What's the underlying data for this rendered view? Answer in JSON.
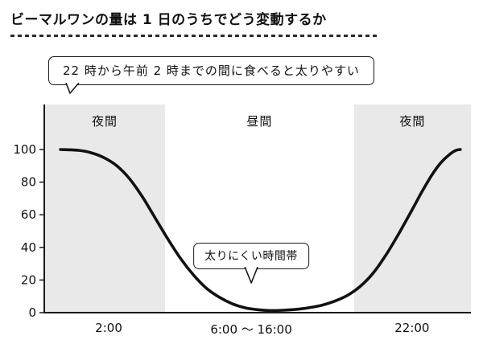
{
  "page": {
    "title": "ビーマルワンの量は 1 日のうちでどう変動するか",
    "callout": "22 時から午前 2 時までの間に食べると太りやすい"
  },
  "chart_data": {
    "type": "line",
    "title": "ビーマルワンの量は 1 日のうちでどう変動するか",
    "xlabel": "",
    "ylabel": "",
    "y_axis": {
      "range": [
        0,
        100
      ],
      "ticks": [
        100,
        80,
        60,
        40,
        20,
        0
      ]
    },
    "x_axis": {
      "ticks": [
        {
          "label": "2:00",
          "pos": 0.151
        },
        {
          "label": "6:00 ～ 16:00",
          "pos": 0.485
        },
        {
          "label": "22:00",
          "pos": 0.862
        }
      ]
    },
    "regions": [
      {
        "label": "夜間",
        "start": 0,
        "end": 0.283,
        "shaded": true
      },
      {
        "label": "昼間",
        "start": 0.283,
        "end": 0.726,
        "shaded": false
      },
      {
        "label": "夜間",
        "start": 0.726,
        "end": 1,
        "shaded": true
      }
    ],
    "series": [
      {
        "name": "ビーマルワンの量",
        "color": "#111111",
        "points": [
          [
            0.038,
            100
          ],
          [
            0.08,
            99.5
          ],
          [
            0.11,
            98
          ],
          [
            0.14,
            95
          ],
          [
            0.17,
            90
          ],
          [
            0.2,
            82
          ],
          [
            0.23,
            71
          ],
          [
            0.26,
            58
          ],
          [
            0.29,
            45
          ],
          [
            0.32,
            33
          ],
          [
            0.35,
            23
          ],
          [
            0.38,
            15
          ],
          [
            0.41,
            9.5
          ],
          [
            0.44,
            5.5
          ],
          [
            0.47,
            3
          ],
          [
            0.5,
            1.8
          ],
          [
            0.53,
            1.3
          ],
          [
            0.56,
            1.5
          ],
          [
            0.59,
            2
          ],
          [
            0.62,
            3
          ],
          [
            0.65,
            4.5
          ],
          [
            0.68,
            7
          ],
          [
            0.71,
            10.5
          ],
          [
            0.74,
            16
          ],
          [
            0.77,
            24
          ],
          [
            0.8,
            35
          ],
          [
            0.83,
            48
          ],
          [
            0.86,
            62
          ],
          [
            0.885,
            74
          ],
          [
            0.91,
            85
          ],
          [
            0.93,
            92
          ],
          [
            0.95,
            97
          ],
          [
            0.965,
            99.5
          ],
          [
            0.975,
            100
          ]
        ]
      }
    ],
    "annotation": {
      "label": "太りにくい時間帯"
    }
  },
  "colors": {
    "band": "#e9e9e9",
    "axis": "#1a1a1a",
    "curve": "#111111"
  }
}
